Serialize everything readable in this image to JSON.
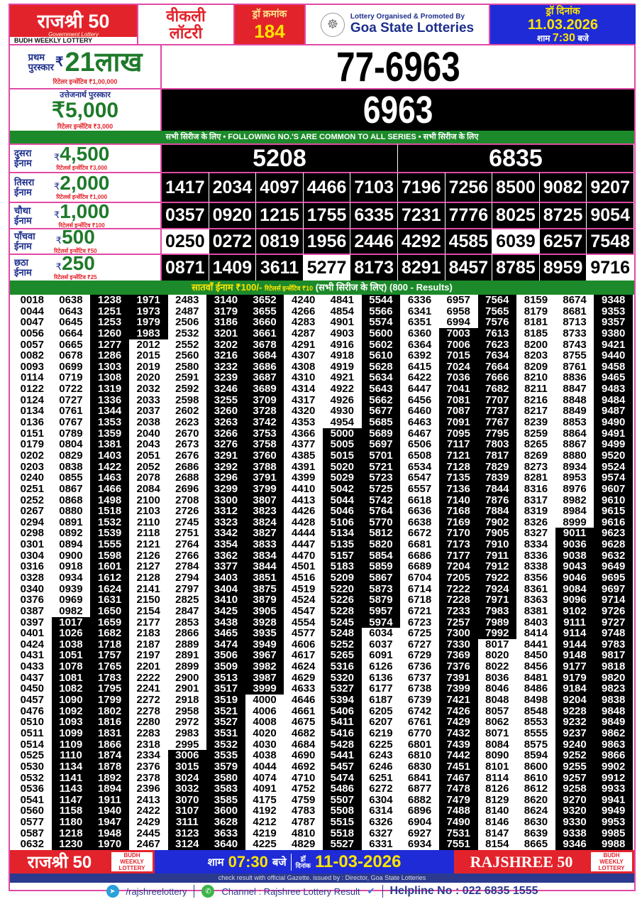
{
  "header": {
    "brand": "राजश्री 50",
    "brand_sub": "Government Lottery",
    "brand_tag": "BUDH WEEKLY LOTTERY",
    "weekly_1": "वीकली",
    "weekly_2": "लॉटरी",
    "draw_no_label": "ड्रॉ क्रमांक",
    "draw_no": "184",
    "organiser_line": "Lottery Organised & Promoted By",
    "organiser": "Goa State Lotteries",
    "date_label": "ड्रॉ दिनांक",
    "date": "11.03.2026",
    "time_pre": "शाम",
    "time": "7:30",
    "time_post": "बजे"
  },
  "first_prize": {
    "label_1": "प्रथम",
    "label_2": "पुरस्कार",
    "currency": "₹",
    "amount": "21लाख",
    "retailer": "रिटेलर इन्सेंटिव ₹1,00,000",
    "number": "77-6963"
  },
  "consolation": {
    "label": "उत्तेजनार्थ पुरस्कार",
    "amount": "₹5,000",
    "retailer": "रिटेलर इन्सेंटिव ₹3,000",
    "number": "6963"
  },
  "common_banner": "सभी सिरीज के लिए  •  FOLLOWING NO.'S ARE COMMON TO ALL SERIES • सभी सिरीज के लिए",
  "prizes": [
    {
      "label_1": "दुसरा",
      "label_2": "ईनाम",
      "amount": "4,500",
      "retailer": "रिटेलर्स इन्सेंटिव ₹3,000",
      "numbers": [
        "5208",
        "6835"
      ],
      "white": []
    },
    {
      "label_1": "तिसरा",
      "label_2": "ईनाम",
      "amount": "2,000",
      "retailer": "रिटेलर्स इन्सेंटिव ₹1,000",
      "numbers": [
        "1417",
        "2034",
        "4097",
        "4466",
        "7103",
        "7196",
        "7256",
        "8500",
        "9082",
        "9207"
      ],
      "white": []
    },
    {
      "label_1": "चौथा",
      "label_2": "ईनाम",
      "amount": "1,000",
      "retailer": "रिटेलर्स इन्सेंटिव ₹100",
      "numbers": [
        "0357",
        "0920",
        "1215",
        "1755",
        "6335",
        "7231",
        "7776",
        "8025",
        "8725",
        "9054"
      ],
      "white": []
    },
    {
      "label_1": "पाँचवा",
      "label_2": "ईनाम",
      "amount": "500",
      "retailer": "रिटेलर्स इन्सेंटिव ₹50",
      "numbers": [
        "0250",
        "0272",
        "0819",
        "1956",
        "2446",
        "4292",
        "4585",
        "6039",
        "6257",
        "7548"
      ],
      "white": [
        "0250",
        "6039"
      ]
    },
    {
      "label_1": "छठा",
      "label_2": "ईनाम",
      "amount": "250",
      "retailer": "रिटेलर्स इन्सेंटिव ₹25",
      "numbers": [
        "0871",
        "1409",
        "3611",
        "5277",
        "8173",
        "8291",
        "8457",
        "8785",
        "8959",
        "9716"
      ],
      "white": [
        "5277",
        "9716"
      ]
    }
  ],
  "seventh": {
    "label": "सातवाँ ईनाम ₹100/-",
    "retailer": "रिटेलर्स इन्सेंटिव ₹10",
    "note": "(सभी सिरीज के लिए)",
    "count": "(800 - Results)"
  },
  "seventh_columns": [
    [
      "0018",
      "0044",
      "0047",
      "0056",
      "0057",
      "0082",
      "0093",
      "0114",
      "0122",
      "0124",
      "0134",
      "0136",
      "0151",
      "0179",
      "0202",
      "0203",
      "0240",
      "0251",
      "0252",
      "0267",
      "0294",
      "0298",
      "0301",
      "0304",
      "0316",
      "0328",
      "0340",
      "0376",
      "0387",
      "0397",
      "0401",
      "0424",
      "0431",
      "0433",
      "0437",
      "0450",
      "0457",
      "0476",
      "0510",
      "0511",
      "0514",
      "0525",
      "0530",
      "0532",
      "0536",
      "0541",
      "0560",
      "0577",
      "0587",
      "0632"
    ],
    [
      "0638",
      "0643",
      "0645",
      "0664",
      "0665",
      "0678",
      "0699",
      "0719",
      "0722",
      "0727",
      "0761",
      "0767",
      "0789",
      "0804",
      "0829",
      "0838",
      "0855",
      "0867",
      "0868",
      "0880",
      "0891",
      "0892",
      "0894",
      "0900",
      "0918",
      "0934",
      "0939",
      "0969",
      "0982",
      "1017",
      "1026",
      "1038",
      "1051",
      "1078",
      "1081",
      "1082",
      "1090",
      "1092",
      "1093",
      "1099",
      "1109",
      "1110",
      "1134",
      "1141",
      "1143",
      "1147",
      "1158",
      "1180",
      "1218",
      "1230"
    ],
    [
      "1238",
      "1251",
      "1253",
      "1260",
      "1277",
      "1286",
      "1303",
      "1308",
      "1319",
      "1336",
      "1344",
      "1353",
      "1359",
      "1381",
      "1403",
      "1422",
      "1463",
      "1466",
      "1498",
      "1518",
      "1532",
      "1539",
      "1555",
      "1598",
      "1601",
      "1612",
      "1624",
      "1631",
      "1650",
      "1659",
      "1682",
      "1718",
      "1757",
      "1765",
      "1783",
      "1795",
      "1799",
      "1802",
      "1816",
      "1831",
      "1866",
      "1874",
      "1878",
      "1892",
      "1894",
      "1911",
      "1940",
      "1947",
      "1948",
      "1970"
    ],
    [
      "1971",
      "1973",
      "1979",
      "1983",
      "2012",
      "2015",
      "2019",
      "2020",
      "2032",
      "2033",
      "2037",
      "2038",
      "2040",
      "2043",
      "2051",
      "2052",
      "2078",
      "2084",
      "2100",
      "2103",
      "2110",
      "2118",
      "2121",
      "2126",
      "2127",
      "2128",
      "2141",
      "2150",
      "2154",
      "2177",
      "2183",
      "2187",
      "2197",
      "2201",
      "2222",
      "2241",
      "2272",
      "2278",
      "2280",
      "2283",
      "2318",
      "2334",
      "2376",
      "2378",
      "2396",
      "2413",
      "2422",
      "2429",
      "2445",
      "2467"
    ],
    [
      "2483",
      "2487",
      "2506",
      "2532",
      "2552",
      "2560",
      "2580",
      "2591",
      "2592",
      "2598",
      "2602",
      "2623",
      "2670",
      "2673",
      "2676",
      "2686",
      "2688",
      "2696",
      "2708",
      "2726",
      "2745",
      "2751",
      "2764",
      "2766",
      "2784",
      "2794",
      "2797",
      "2825",
      "2847",
      "2853",
      "2866",
      "2889",
      "2891",
      "2899",
      "2900",
      "2901",
      "2918",
      "2958",
      "2972",
      "2983",
      "2995",
      "3006",
      "3015",
      "3024",
      "3032",
      "3070",
      "3107",
      "3111",
      "3123",
      "3124"
    ],
    [
      "3140",
      "3179",
      "3186",
      "3201",
      "3202",
      "3216",
      "3232",
      "3239",
      "3246",
      "3255",
      "3260",
      "3263",
      "3266",
      "3276",
      "3291",
      "3292",
      "3296",
      "3299",
      "3300",
      "3312",
      "3323",
      "3342",
      "3354",
      "3362",
      "3377",
      "3403",
      "3404",
      "3410",
      "3425",
      "3438",
      "3465",
      "3474",
      "3506",
      "3509",
      "3513",
      "3517",
      "3519",
      "3521",
      "3527",
      "3531",
      "3532",
      "3535",
      "3579",
      "3580",
      "3583",
      "3585",
      "3600",
      "3628",
      "3633",
      "3640"
    ],
    [
      "3652",
      "3655",
      "3660",
      "3661",
      "3678",
      "3684",
      "3686",
      "3687",
      "3689",
      "3709",
      "3728",
      "3742",
      "3753",
      "3758",
      "3760",
      "3788",
      "3791",
      "3799",
      "3807",
      "3823",
      "3824",
      "3827",
      "3833",
      "3834",
      "3844",
      "3851",
      "3875",
      "3879",
      "3905",
      "3928",
      "3935",
      "3949",
      "3967",
      "3982",
      "3987",
      "3999",
      "4000",
      "4006",
      "4008",
      "4020",
      "4030",
      "4038",
      "4044",
      "4074",
      "4091",
      "4175",
      "4192",
      "4212",
      "4219",
      "4225"
    ],
    [
      "4240",
      "4266",
      "4283",
      "4287",
      "4291",
      "4307",
      "4308",
      "4310",
      "4314",
      "4317",
      "4320",
      "4353",
      "4366",
      "4377",
      "4385",
      "4391",
      "4399",
      "4410",
      "4413",
      "4426",
      "4428",
      "4444",
      "4447",
      "4470",
      "4501",
      "4516",
      "4519",
      "4524",
      "4547",
      "4554",
      "4577",
      "4606",
      "4617",
      "4624",
      "4629",
      "4633",
      "4646",
      "4661",
      "4675",
      "4682",
      "4684",
      "4690",
      "4692",
      "4710",
      "4752",
      "4759",
      "4783",
      "4787",
      "4810",
      "4829"
    ],
    [
      "4841",
      "4854",
      "4901",
      "4903",
      "4916",
      "4918",
      "4919",
      "4921",
      "4922",
      "4926",
      "4930",
      "4954",
      "5000",
      "5005",
      "5015",
      "5020",
      "5029",
      "5042",
      "5044",
      "5046",
      "5106",
      "5134",
      "5135",
      "5157",
      "5183",
      "5209",
      "5220",
      "5226",
      "5228",
      "5245",
      "5248",
      "5252",
      "5265",
      "5316",
      "5320",
      "5327",
      "5394",
      "5406",
      "5411",
      "5416",
      "5428",
      "5441",
      "5457",
      "5474",
      "5486",
      "5507",
      "5508",
      "5515",
      "5518",
      "5527"
    ],
    [
      "5544",
      "5566",
      "5574",
      "5600",
      "5602",
      "5610",
      "5628",
      "5634",
      "5643",
      "5662",
      "5677",
      "5685",
      "5689",
      "5697",
      "5701",
      "5721",
      "5723",
      "5725",
      "5742",
      "5764",
      "5770",
      "5812",
      "5820",
      "5854",
      "5859",
      "5867",
      "5873",
      "5879",
      "5957",
      "5974",
      "6034",
      "6037",
      "6091",
      "6126",
      "6136",
      "6177",
      "6187",
      "6205",
      "6207",
      "6219",
      "6225",
      "6243",
      "6246",
      "6251",
      "6272",
      "6304",
      "6314",
      "6326",
      "6327",
      "6331"
    ],
    [
      "6336",
      "6341",
      "6351",
      "6360",
      "6364",
      "6392",
      "6415",
      "6422",
      "6447",
      "6456",
      "6460",
      "6463",
      "6467",
      "6506",
      "6508",
      "6534",
      "6547",
      "6557",
      "6618",
      "6636",
      "6638",
      "6672",
      "6681",
      "6686",
      "6689",
      "6704",
      "6714",
      "6718",
      "6721",
      "6723",
      "6725",
      "6727",
      "6729",
      "6736",
      "6737",
      "6738",
      "6739",
      "6742",
      "6761",
      "6770",
      "6801",
      "6810",
      "6830",
      "6841",
      "6877",
      "6882",
      "6896",
      "6904",
      "6927",
      "6934"
    ],
    [
      "6957",
      "6958",
      "6994",
      "7003",
      "7006",
      "7015",
      "7024",
      "7036",
      "7041",
      "7081",
      "7087",
      "7091",
      "7095",
      "7117",
      "7121",
      "7128",
      "7135",
      "7136",
      "7140",
      "7168",
      "7169",
      "7170",
      "7173",
      "7177",
      "7204",
      "7205",
      "7222",
      "7228",
      "7233",
      "7257",
      "7300",
      "7330",
      "7369",
      "7376",
      "7391",
      "7399",
      "7421",
      "7426",
      "7429",
      "7432",
      "7439",
      "7442",
      "7451",
      "7467",
      "7478",
      "7479",
      "7488",
      "7490",
      "7531",
      "7551"
    ],
    [
      "7564",
      "7565",
      "7576",
      "7613",
      "7623",
      "7634",
      "7664",
      "7666",
      "7682",
      "7707",
      "7737",
      "7767",
      "7795",
      "7803",
      "7817",
      "7829",
      "7839",
      "7844",
      "7876",
      "7884",
      "7902",
      "7905",
      "7910",
      "7911",
      "7912",
      "7922",
      "7924",
      "7971",
      "7983",
      "7989",
      "7992",
      "8017",
      "8020",
      "8022",
      "8036",
      "8046",
      "8048",
      "8057",
      "8062",
      "8071",
      "8084",
      "8090",
      "8101",
      "8114",
      "8126",
      "8129",
      "8140",
      "8146",
      "8147",
      "8154"
    ],
    [
      "8159",
      "8179",
      "8181",
      "8185",
      "8200",
      "8203",
      "8209",
      "8210",
      "8211",
      "8216",
      "8217",
      "8239",
      "8259",
      "8265",
      "8269",
      "8273",
      "8281",
      "8316",
      "8317",
      "8319",
      "8326",
      "8327",
      "8334",
      "8336",
      "8338",
      "8356",
      "8361",
      "8363",
      "8381",
      "8403",
      "8414",
      "8441",
      "8450",
      "8456",
      "8481",
      "8486",
      "8498",
      "8548",
      "8553",
      "8555",
      "8575",
      "8594",
      "8600",
      "8610",
      "8612",
      "8620",
      "8624",
      "8630",
      "8639",
      "8665"
    ],
    [
      "8674",
      "8681",
      "8713",
      "8733",
      "8743",
      "8755",
      "8761",
      "8836",
      "8847",
      "8848",
      "8849",
      "8853",
      "8864",
      "8867",
      "8880",
      "8934",
      "8953",
      "8976",
      "8982",
      "8984",
      "8999",
      "9011",
      "9036",
      "9038",
      "9043",
      "9046",
      "9084",
      "9096",
      "9102",
      "9111",
      "9114",
      "9144",
      "9148",
      "9177",
      "9179",
      "9184",
      "9204",
      "9228",
      "9232",
      "9237",
      "9240",
      "9252",
      "9255",
      "9257",
      "9258",
      "9270",
      "9320",
      "9330",
      "9338",
      "9346"
    ],
    [
      "9348",
      "9353",
      "9357",
      "9380",
      "9421",
      "9440",
      "9458",
      "9465",
      "9483",
      "9484",
      "9487",
      "9490",
      "9491",
      "9499",
      "9520",
      "9524",
      "9574",
      "9607",
      "9610",
      "9615",
      "9616",
      "9623",
      "9628",
      "9632",
      "9649",
      "9695",
      "9697",
      "9714",
      "9726",
      "9727",
      "9748",
      "9783",
      "9817",
      "9818",
      "9820",
      "9823",
      "9838",
      "9848",
      "9849",
      "9862",
      "9863",
      "9866",
      "9902",
      "9912",
      "9933",
      "9941",
      "9949",
      "9953",
      "9985",
      "9988"
    ]
  ],
  "footer": {
    "brand": "राजश्री 50",
    "tag_1": "BUDH",
    "tag_2": "WEEKLY",
    "tag_3": "LOTTERY",
    "time_pre": "शाम",
    "time": "07:30",
    "time_post": "बजे",
    "date_label_1": "ड्रॉ",
    "date_label_2": "दिनांक",
    "date": "11-03-2026",
    "brand_en": "RAJSHREE 50",
    "gazette": "check result with official Gazette. issued by : Director, Goa State Lotteries",
    "telegram": "/rajshreelottery",
    "channel": "Channel : Rajshree Lottery Result",
    "helpline": "Helpline No : 022 6835 1555"
  },
  "colors": {
    "red": "#e3232b",
    "green": "#1c8a2a",
    "blue": "#1e2bd6",
    "navy": "#2b3a8f",
    "pink_border": "#e04aa5",
    "yellow": "#ffe400"
  }
}
